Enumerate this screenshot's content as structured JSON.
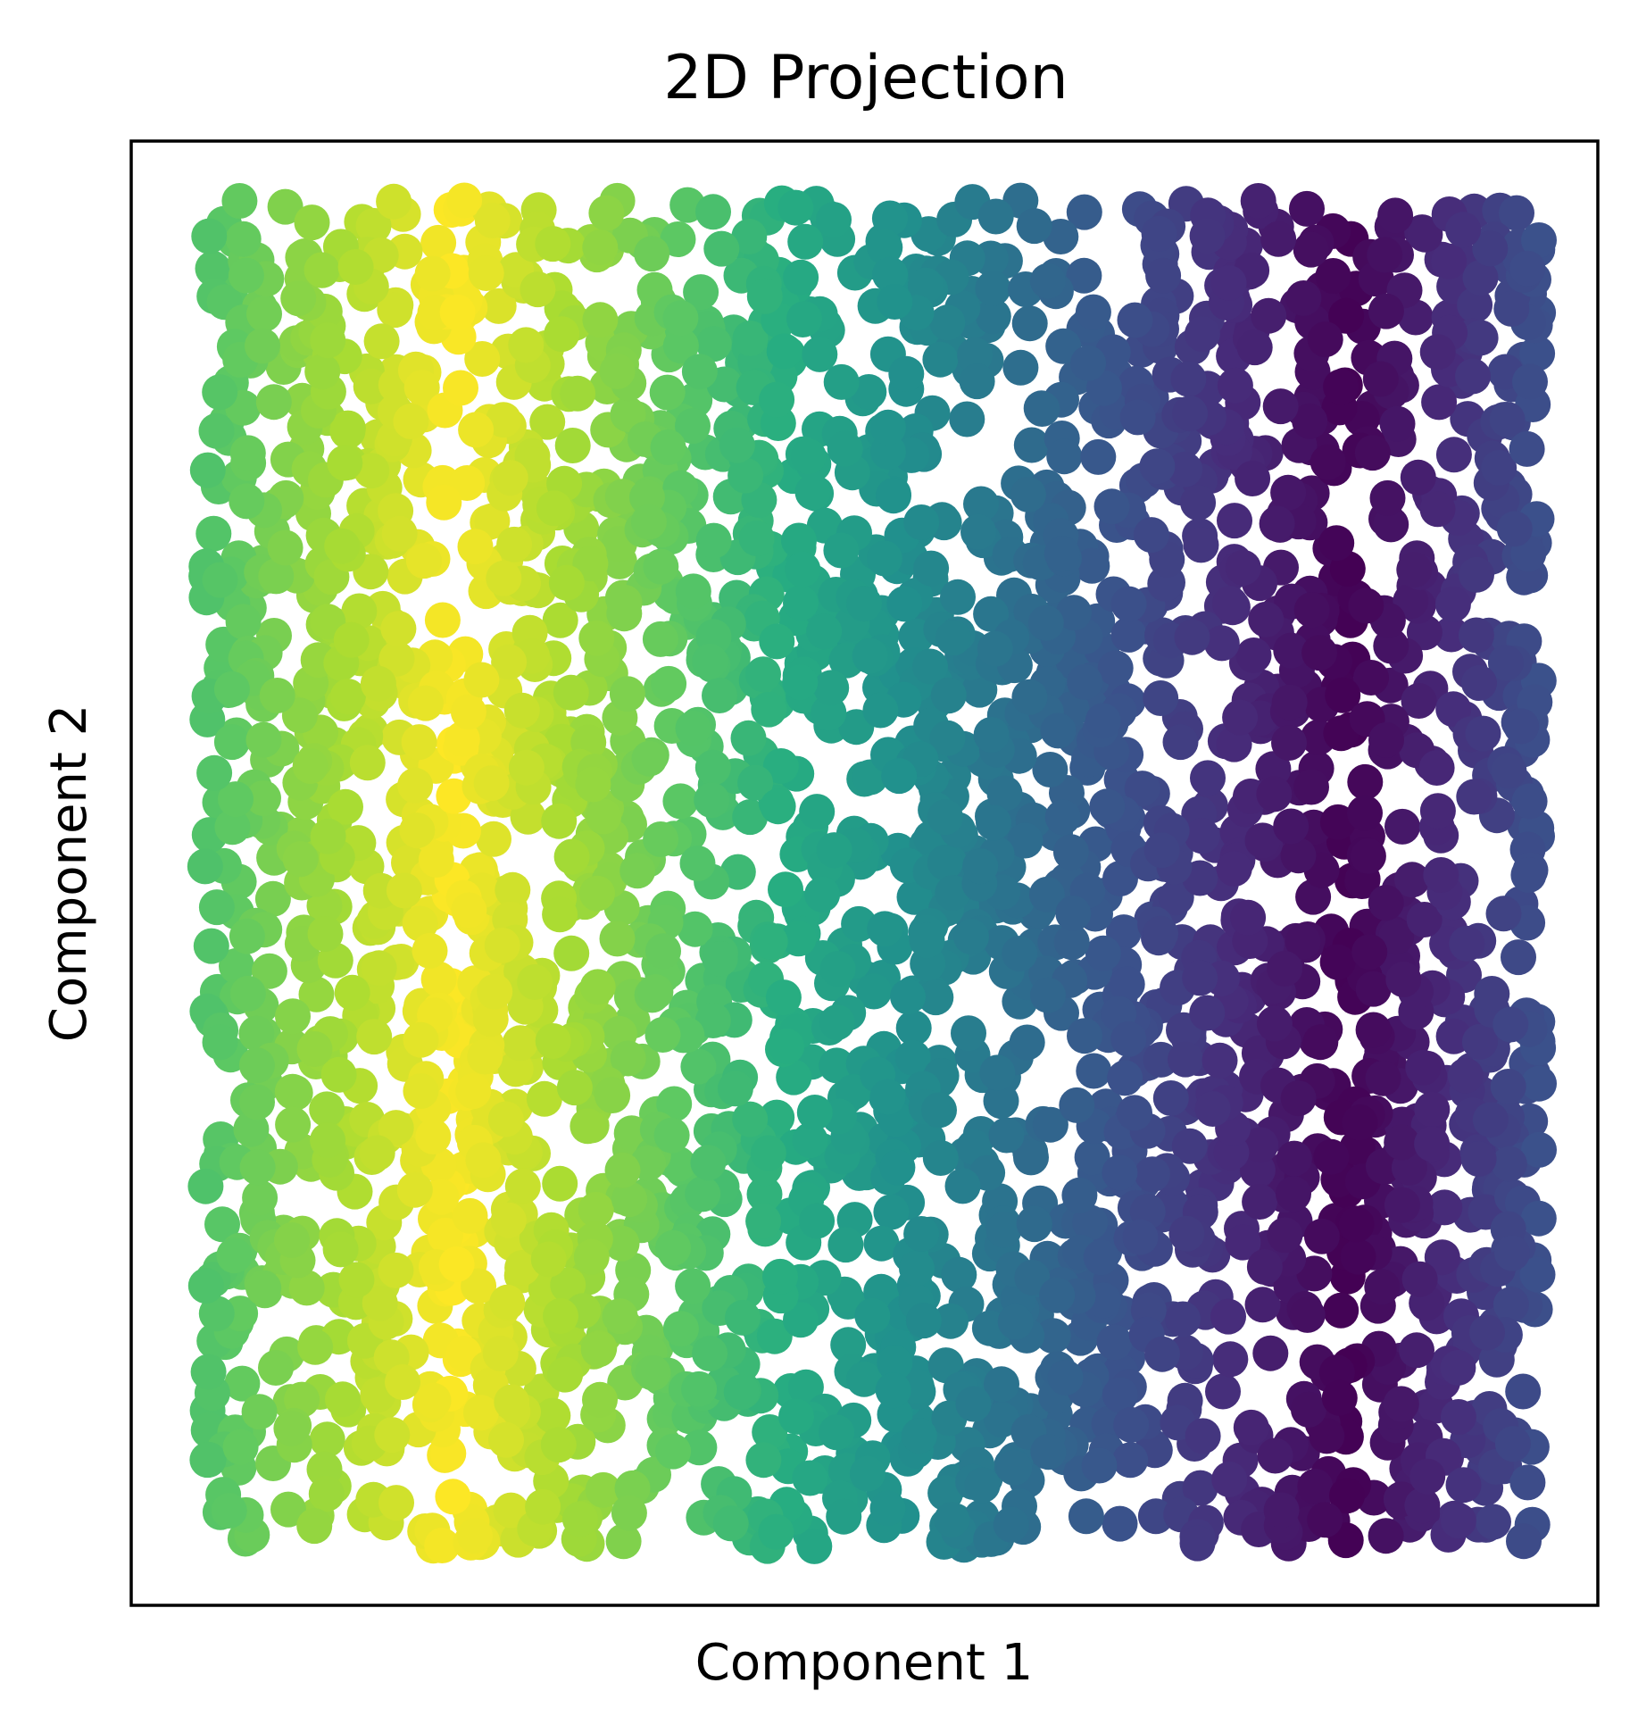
{
  "chart_data": {
    "type": "scatter",
    "title": "2D Projection",
    "xlabel": "Component 1",
    "ylabel": "Component 2",
    "xlim": [
      0,
      1
    ],
    "ylim": [
      0,
      1
    ],
    "xticks": [],
    "yticks": [],
    "grid": false,
    "legend": "none",
    "colormap": "viridis",
    "color_by": "x",
    "colormap_range": [
      "#fde725",
      "#440154"
    ],
    "point_color": "#21918c",
    "point_count": 3000,
    "x_extent": [
      0.05,
      0.96
    ],
    "y_extent": [
      0.04,
      0.96
    ],
    "frame_color": "#000000"
  }
}
